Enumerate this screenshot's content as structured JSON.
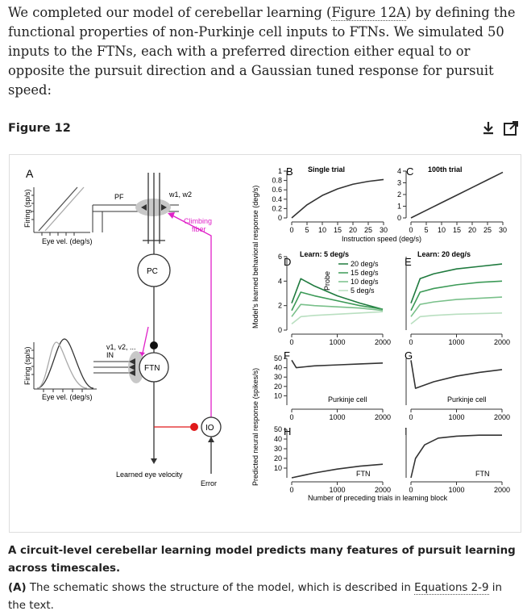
{
  "intro": {
    "text_before": "We completed our model of cerebellar learning (",
    "ref": "Figure 12A",
    "text_after": ") by defining the functional properties of non-Purkinje cell inputs to FTNs. We simulated 50 inputs to the FTNs, each with a preferred direction either equal to or opposite the pursuit direction and a Gaussian tuned response for pursuit speed:"
  },
  "figure": {
    "label": "Figure 12",
    "icons": [
      "download-icon",
      "open-external-icon"
    ],
    "panelA": {
      "letter": "A",
      "firing_label_top": "Firing (sp/s)",
      "eye_vel_top": "Eye vel. (deg/s)",
      "pf": "PF",
      "w": "w1, w2",
      "climbing1": "Climbing",
      "climbing2": "fiber",
      "pc": "PC",
      "firing_label_bottom": "Firing (sp/s)",
      "eye_vel_bottom": "Eye vel. (deg/s)",
      "v": "v1, v2, ...",
      "in": "IN",
      "ftn": "FTN",
      "io": "IO",
      "learned": "Learned eye velocity",
      "error": "Error"
    },
    "axes": {
      "behav_ylabel": "Model's learned behavioral response (deg/s)",
      "neural_ylabel": "Predicted neural response (spikes/s)",
      "instruction_xlabel": "Instruction speed (deg/s)",
      "trials_xlabel": "Number of preceding trials in learning block",
      "probe": "Probe"
    },
    "panelB": {
      "letter": "B",
      "title": "Single trial"
    },
    "panelC": {
      "letter": "C",
      "title": "100th trial"
    },
    "panelD": {
      "letter": "D",
      "title": "Learn: 5 deg/s"
    },
    "panelE": {
      "letter": "E",
      "title": "Learn: 20 deg/s"
    },
    "panelF": {
      "letter": "F",
      "label": "Purkinje cell"
    },
    "panelG": {
      "letter": "G",
      "label": "Purkinje cell"
    },
    "panelH": {
      "letter": "H",
      "label": "FTN"
    },
    "panelI": {
      "letter": "I",
      "label": "FTN"
    },
    "legend": [
      "20 deg/s",
      "15 deg/s",
      "10 deg/s",
      "5 deg/s"
    ],
    "colors": {
      "pink": "#e020c8",
      "red": "#e0191a",
      "green": [
        "#1f7a3e",
        "#3c9a57",
        "#79c08a",
        "#b9dfc0"
      ]
    }
  },
  "chart_data": [
    {
      "type": "line",
      "panel": "B",
      "title": "Single trial",
      "xlabel": "Instruction speed (deg/s)",
      "x": [
        0,
        5,
        10,
        15,
        20,
        25,
        30
      ],
      "series": [
        {
          "name": "response",
          "values": [
            0,
            0.28,
            0.48,
            0.62,
            0.72,
            0.78,
            0.82
          ]
        }
      ],
      "xlim": [
        0,
        30
      ],
      "ylim": [
        0,
        1
      ],
      "x_ticks": [
        "0",
        "5",
        "10",
        "15",
        "20",
        "25",
        "30"
      ],
      "y_ticks": [
        "0",
        "0.2",
        "0.4",
        "0.6",
        "0.8",
        "1"
      ]
    },
    {
      "type": "line",
      "panel": "C",
      "title": "100th trial",
      "xlabel": "Instruction speed (deg/s)",
      "x": [
        0,
        5,
        10,
        15,
        20,
        25,
        30
      ],
      "series": [
        {
          "name": "response",
          "values": [
            0,
            0.65,
            1.3,
            1.95,
            2.6,
            3.25,
            3.9
          ]
        }
      ],
      "xlim": [
        0,
        30
      ],
      "ylim": [
        0,
        4
      ],
      "x_ticks": [
        "0",
        "5",
        "10",
        "15",
        "20",
        "25",
        "30"
      ],
      "y_ticks": [
        "0",
        "1",
        "2",
        "3",
        "4"
      ]
    },
    {
      "type": "line",
      "panel": "D",
      "title": "Learn: 5 deg/s",
      "x": [
        0,
        200,
        500,
        1000,
        1500,
        2000
      ],
      "series": [
        {
          "name": "20 deg/s",
          "values": [
            2.2,
            4.2,
            3.6,
            2.8,
            2.2,
            1.7
          ]
        },
        {
          "name": "15 deg/s",
          "values": [
            1.6,
            3.1,
            2.8,
            2.4,
            2.0,
            1.7
          ]
        },
        {
          "name": "10 deg/s",
          "values": [
            1.1,
            2.1,
            2.0,
            1.9,
            1.8,
            1.6
          ]
        },
        {
          "name": "5 deg/s",
          "values": [
            0.5,
            1.1,
            1.2,
            1.3,
            1.4,
            1.5
          ]
        }
      ],
      "xlim": [
        0,
        2000
      ],
      "ylim": [
        0,
        6
      ],
      "x_ticks": [
        "0",
        "1000",
        "2000"
      ],
      "y_ticks": [
        "0",
        "2",
        "4",
        "6"
      ]
    },
    {
      "type": "line",
      "panel": "E",
      "title": "Learn: 20 deg/s",
      "x": [
        0,
        200,
        500,
        1000,
        1500,
        2000
      ],
      "series": [
        {
          "name": "20 deg/s",
          "values": [
            2.2,
            4.2,
            4.6,
            5.0,
            5.2,
            5.4
          ]
        },
        {
          "name": "15 deg/s",
          "values": [
            1.6,
            3.1,
            3.4,
            3.7,
            3.9,
            4.0
          ]
        },
        {
          "name": "10 deg/s",
          "values": [
            1.1,
            2.1,
            2.3,
            2.5,
            2.6,
            2.7
          ]
        },
        {
          "name": "5 deg/s",
          "values": [
            0.5,
            1.1,
            1.2,
            1.3,
            1.35,
            1.4
          ]
        }
      ],
      "xlim": [
        0,
        2000
      ],
      "ylim": [
        0,
        6
      ],
      "x_ticks": [
        "0",
        "1000",
        "2000"
      ]
    },
    {
      "type": "line",
      "panel": "F",
      "label": "Purkinje cell",
      "x": [
        0,
        100,
        500,
        1000,
        1500,
        2000
      ],
      "series": [
        {
          "name": "Purkinje cell",
          "values": [
            48,
            40,
            42,
            43,
            44,
            45
          ]
        }
      ],
      "xlim": [
        0,
        2000
      ],
      "ylim": [
        0,
        50
      ],
      "x_ticks": [
        "0",
        "1000",
        "2000"
      ],
      "y_ticks": [
        "10",
        "20",
        "30",
        "40",
        "50"
      ]
    },
    {
      "type": "line",
      "panel": "G",
      "label": "Purkinje cell",
      "x": [
        0,
        100,
        500,
        1000,
        1500,
        2000
      ],
      "series": [
        {
          "name": "Purkinje cell",
          "values": [
            48,
            18,
            25,
            31,
            35,
            38
          ]
        }
      ],
      "xlim": [
        0,
        2000
      ],
      "ylim": [
        0,
        50
      ],
      "x_ticks": [
        "0",
        "1000",
        "2000"
      ]
    },
    {
      "type": "line",
      "panel": "H",
      "label": "FTN",
      "xlabel": "Number of preceding trials in learning block",
      "x": [
        0,
        500,
        1000,
        1500,
        2000
      ],
      "series": [
        {
          "name": "FTN",
          "values": [
            0,
            5,
            9,
            12,
            14
          ]
        }
      ],
      "xlim": [
        0,
        2000
      ],
      "ylim": [
        0,
        50
      ],
      "x_ticks": [
        "0",
        "1000",
        "2000"
      ],
      "y_ticks": [
        "10",
        "20",
        "30",
        "40",
        "50"
      ]
    },
    {
      "type": "line",
      "panel": "I",
      "label": "FTN",
      "xlabel": "Number of preceding trials in learning block",
      "x": [
        0,
        100,
        300,
        600,
        1000,
        1500,
        2000
      ],
      "series": [
        {
          "name": "FTN",
          "values": [
            0,
            20,
            34,
            41,
            43,
            44,
            44
          ]
        }
      ],
      "xlim": [
        0,
        2000
      ],
      "ylim": [
        0,
        50
      ],
      "x_ticks": [
        "0",
        "1000",
        "2000"
      ]
    }
  ],
  "caption": {
    "title": "A circuit-level cerebellar learning model predicts many features of pursuit learning across timescales.",
    "para_label": "(A)",
    "para_before": " The schematic shows the structure of the model, which is described in ",
    "para_ref": "Equations 2-9",
    "para_after": " in the text."
  }
}
